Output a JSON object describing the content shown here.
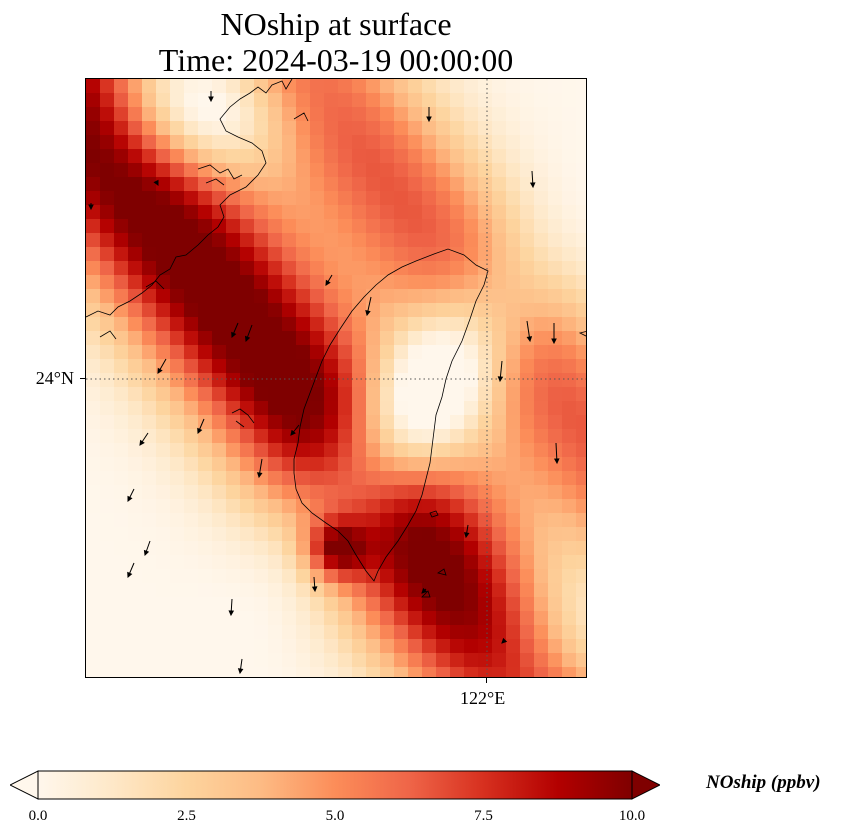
{
  "title": {
    "line1": "NOship at surface",
    "line2": "Time: 2024-03-19 00:00:00"
  },
  "map": {
    "lat_gridline_label": "24°N",
    "lon_gridline_label": "122°E",
    "gridline_lat": 24,
    "gridline_lon": 122,
    "coastline_color": "#000000",
    "wind_arrow_color": "#000000"
  },
  "colorbar": {
    "label": "NOship (ppbv)",
    "min": 0.0,
    "max": 10.0,
    "extend": "both",
    "colormap": [
      "#fff7ec",
      "#fee8c8",
      "#fdd49e",
      "#fdbb84",
      "#fc8d59",
      "#ef6548",
      "#d7301f",
      "#b30000",
      "#7f0000"
    ],
    "ticks": [
      "0.0",
      "2.5",
      "5.0",
      "7.5",
      "10.0"
    ]
  }
}
